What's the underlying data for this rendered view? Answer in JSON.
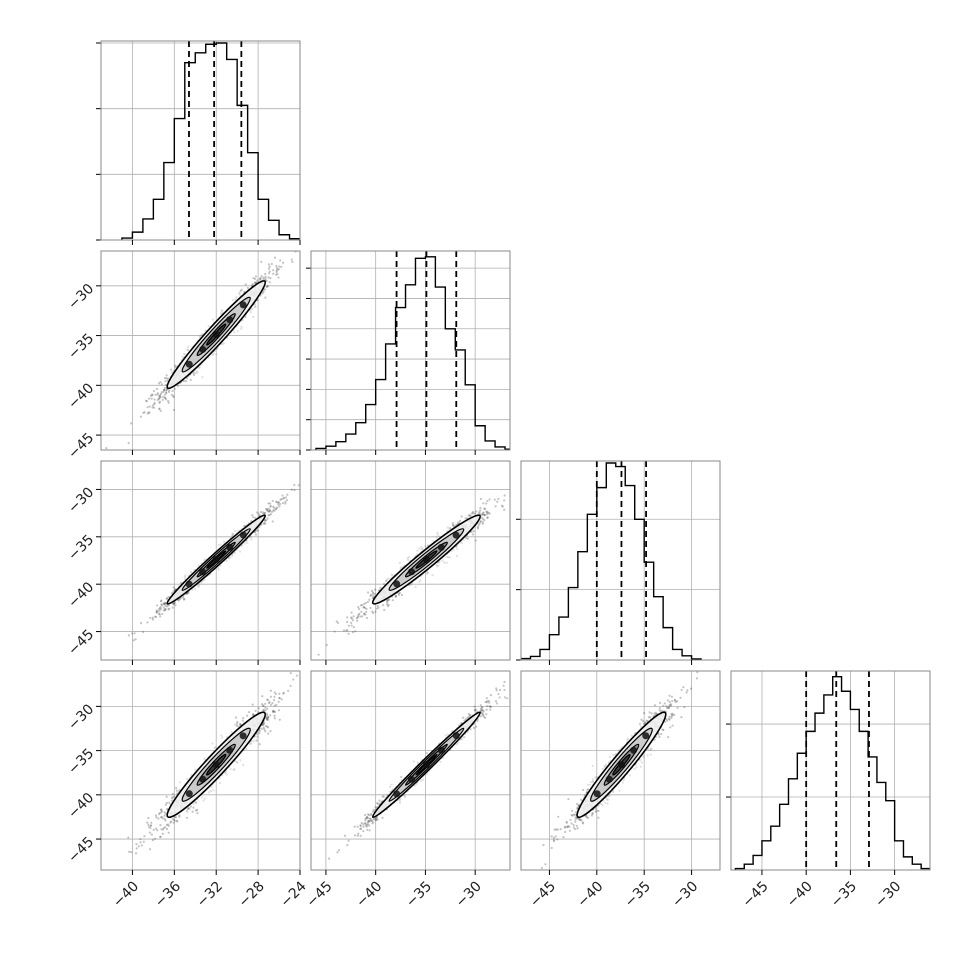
{
  "chart_data": {
    "type": "corner",
    "grid": true,
    "colors": {
      "ink": "#000000",
      "grid": "#b0b0b0",
      "frame": "#888888",
      "scatter": "#555555",
      "contour_fill": [
        "#f2f2f2",
        "#c8c8c8",
        "#8a8a8a",
        "#333333"
      ]
    },
    "parameters": [
      {
        "range": [
          -43,
          -24
        ],
        "ticks": [
          -40,
          -36,
          -32,
          -28,
          -24
        ],
        "tick_labels": [
          "−40",
          "−36",
          "−32",
          "−28",
          "−24"
        ],
        "mean": -32,
        "sigma": 2.6,
        "quantiles": [
          -34.6,
          -32.2,
          -29.6
        ]
      },
      {
        "range": [
          -46.5,
          -26.5
        ],
        "ticks": [
          -45,
          -40,
          -35,
          -30
        ],
        "tick_labels": [
          "−45",
          "−40",
          "−35",
          "−30"
        ],
        "mean": -34.9,
        "sigma": 3.0,
        "quantiles": [
          -37.9,
          -34.9,
          -31.9
        ]
      },
      {
        "range": [
          -48,
          -27
        ],
        "ticks": [
          -45,
          -40,
          -35,
          -30
        ],
        "tick_labels": [
          "−45",
          "−40",
          "−35",
          "−30"
        ],
        "mean": -37.4,
        "sigma": 2.6,
        "quantiles": [
          -40.0,
          -37.4,
          -34.8
        ]
      },
      {
        "range": [
          -48.5,
          -26
        ],
        "ticks": [
          -45,
          -40,
          -35,
          -30
        ],
        "tick_labels": [
          "−45",
          "−40",
          "−35",
          "−30"
        ],
        "mean": -36.6,
        "sigma": 3.3,
        "quantiles": [
          -40.0,
          -36.6,
          -32.9
        ]
      }
    ],
    "histograms": [
      {
        "param": 0,
        "ylim": [
          0,
          3000
        ],
        "yticks": [
          0,
          1000,
          2000,
          3000
        ],
        "bin_edges": [
          -41,
          -40,
          -39,
          -38,
          -37,
          -36,
          -35,
          -34,
          -33,
          -32,
          -31,
          -30,
          -29,
          -28,
          -27,
          -26,
          -25,
          -24
        ],
        "counts": [
          30,
          120,
          320,
          620,
          1180,
          1850,
          2700,
          2850,
          2980,
          3000,
          2750,
          2050,
          1330,
          620,
          300,
          80,
          20
        ]
      },
      {
        "param": 1,
        "ylim": [
          0,
          2600
        ],
        "yticks": [
          0,
          400,
          800,
          1200,
          1600,
          2000,
          2400
        ],
        "bin_edges": [
          -46,
          -45,
          -44,
          -43,
          -42,
          -41,
          -40,
          -39,
          -38,
          -37,
          -36,
          -35,
          -34,
          -33,
          -32,
          -31,
          -30,
          -29,
          -28,
          -27,
          -26
        ],
        "counts": [
          20,
          50,
          110,
          210,
          360,
          600,
          930,
          1400,
          1880,
          2180,
          2530,
          2550,
          2150,
          1600,
          1320,
          860,
          320,
          120,
          40,
          10
        ]
      },
      {
        "param": 2,
        "ylim": [
          0,
          2800
        ],
        "yticks": [
          0,
          1000,
          2000
        ],
        "bin_edges": [
          -48,
          -47,
          -46,
          -45,
          -44,
          -43,
          -42,
          -41,
          -40,
          -39,
          -38,
          -37,
          -36,
          -35,
          -34,
          -33,
          -32,
          -31,
          -30,
          -29
        ],
        "counts": [
          20,
          50,
          150,
          360,
          610,
          1030,
          1540,
          2070,
          2450,
          2800,
          2750,
          2480,
          2000,
          1390,
          900,
          460,
          150,
          60,
          15
        ]
      },
      {
        "param": 3,
        "ylim": [
          0,
          2700
        ],
        "yticks": [
          1000,
          2000
        ],
        "bin_edges": [
          -48,
          -47,
          -46,
          -45,
          -44,
          -43,
          -42,
          -41,
          -40,
          -39,
          -38,
          -37,
          -36,
          -35,
          -34,
          -33,
          -32,
          -31,
          -30,
          -29,
          -28,
          -27,
          -26
        ],
        "counts": [
          20,
          80,
          200,
          400,
          600,
          900,
          1250,
          1600,
          1900,
          2150,
          2400,
          2650,
          2450,
          2200,
          1900,
          1550,
          1200,
          950,
          400,
          180,
          80,
          20
        ]
      }
    ],
    "pairs": [
      {
        "x": 0,
        "y": 1,
        "rho": 0.97
      },
      {
        "x": 0,
        "y": 2,
        "rho": 0.985
      },
      {
        "x": 1,
        "y": 2,
        "rho": 0.97
      },
      {
        "x": 0,
        "y": 3,
        "rho": 0.96
      },
      {
        "x": 1,
        "y": 3,
        "rho": 0.99
      },
      {
        "x": 2,
        "y": 3,
        "rho": 0.96
      }
    ]
  }
}
